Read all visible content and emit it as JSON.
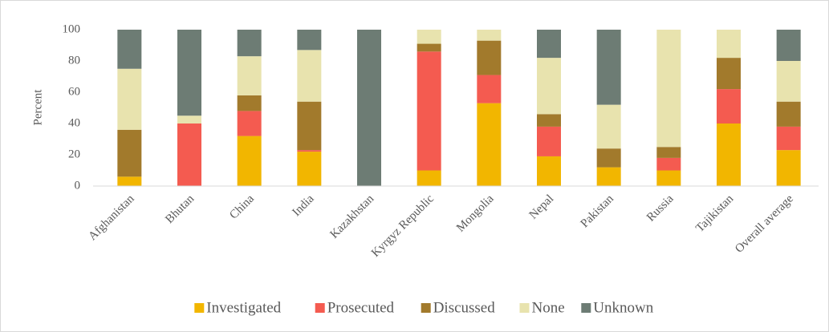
{
  "chart_data": {
    "type": "stacked_bar",
    "y_label": "Percent",
    "categories": [
      "Afghanistan",
      "Bhutan",
      "China",
      "India",
      "Kazakhstan",
      "Kyrgyz Republic",
      "Mongolia",
      "Nepal",
      "Pakistan",
      "Russia",
      "Tajikistan",
      "Overall average"
    ],
    "series": [
      {
        "name": "Investigated",
        "color": "#f2b600",
        "values": [
          6,
          0,
          32,
          22,
          0,
          10,
          53,
          19,
          12,
          10,
          40,
          23
        ]
      },
      {
        "name": "Prosecuted",
        "color": "#f45b50",
        "values": [
          0,
          40,
          16,
          1,
          0,
          76,
          18,
          19,
          0,
          8,
          22,
          15
        ]
      },
      {
        "name": "Discussed",
        "color": "#a27a2c",
        "values": [
          30,
          0,
          10,
          31,
          0,
          5,
          22,
          8,
          12,
          7,
          20,
          16
        ]
      },
      {
        "name": "None",
        "color": "#e8e3ae",
        "values": [
          39,
          5,
          25,
          33,
          0,
          9,
          7,
          36,
          28,
          75,
          18,
          26
        ]
      },
      {
        "name": "Unknown",
        "color": "#6d7c74",
        "values": [
          25,
          55,
          17,
          13,
          100,
          0,
          0,
          18,
          48,
          0,
          0,
          20
        ]
      }
    ],
    "ylim": [
      0,
      100
    ],
    "yticks": [
      0,
      20,
      40,
      60,
      80,
      100
    ],
    "legend": "bottom"
  }
}
